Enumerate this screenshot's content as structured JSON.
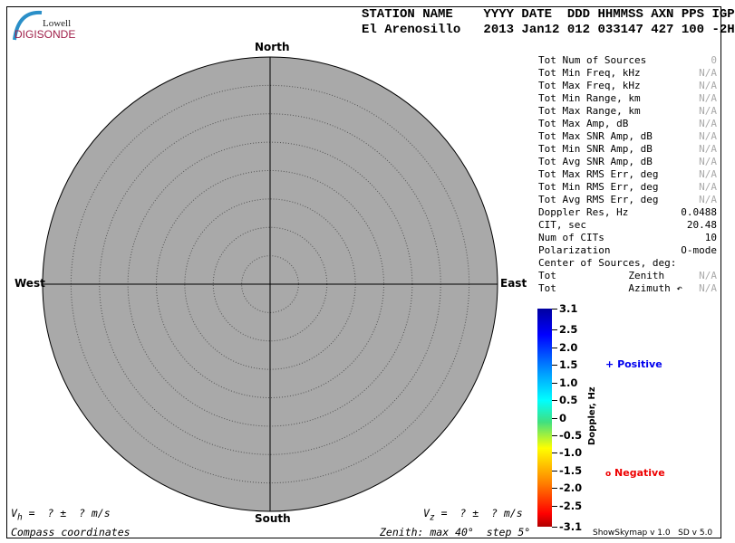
{
  "logo": {
    "line1": "Lowell",
    "line2": "DIGISONDE"
  },
  "header": {
    "labels": "STATION NAME    YYYY DATE  DDD HHMMSS AXN PPS IGP",
    "values": "El Arenosillo   2013 Jan12 012 033147 427 100 -2H"
  },
  "compass": {
    "north": "North",
    "south": "South",
    "east": "East",
    "west": "West",
    "max_zenith_deg": 40,
    "step_deg": 5
  },
  "stats": [
    {
      "label": "Tot Num of Sources",
      "value": "0",
      "muted": true
    },
    {
      "label": "Tot Min Freq, kHz",
      "value": "N/A",
      "muted": true
    },
    {
      "label": "Tot Max Freq, kHz",
      "value": "N/A",
      "muted": true
    },
    {
      "label": "Tot Min Range, km",
      "value": "N/A",
      "muted": true
    },
    {
      "label": "Tot Max Range, km",
      "value": "N/A",
      "muted": true
    },
    {
      "label": "Tot Max Amp, dB",
      "value": "N/A",
      "muted": true
    },
    {
      "label": "Tot Max SNR Amp, dB",
      "value": "N/A",
      "muted": true
    },
    {
      "label": "Tot Min SNR Amp, dB",
      "value": "N/A",
      "muted": true
    },
    {
      "label": "Tot Avg SNR Amp, dB",
      "value": "N/A",
      "muted": true
    },
    {
      "label": "Tot Max RMS Err, deg",
      "value": "N/A",
      "muted": true
    },
    {
      "label": "Tot Min RMS Err, deg",
      "value": "N/A",
      "muted": true
    },
    {
      "label": "Tot Avg RMS Err, deg",
      "value": "N/A",
      "muted": true
    },
    {
      "label": "Doppler Res, Hz",
      "value": "0.0488",
      "muted": false
    },
    {
      "label": "CIT, sec",
      "value": "20.48",
      "muted": false
    },
    {
      "label": "Num of CITs",
      "value": "10",
      "muted": false
    },
    {
      "label": "Polarization",
      "value": "O-mode",
      "muted": false
    },
    {
      "label": "Center of Sources, deg:",
      "value": "",
      "muted": false
    },
    {
      "label": "Tot            Zenith",
      "value": "N/A",
      "muted": true
    },
    {
      "label": "Tot            Azimuth ↶",
      "value": "N/A",
      "muted": true
    }
  ],
  "colorbar": {
    "title": "Doppler, Hz",
    "ticks": [
      "3.1",
      "2.5",
      "2.0",
      "1.5",
      "1.0",
      "0.5",
      "0",
      "-0.5",
      "-1.0",
      "-1.5",
      "-2.0",
      "-2.5",
      "-3.1"
    ],
    "range": [
      -3.1,
      3.1
    ]
  },
  "legend": {
    "positive": "Positive",
    "negative": "Negative",
    "positive_symbol": "+",
    "negative_symbol": "o",
    "positive_color": "#0000ee",
    "negative_color": "#ee0000"
  },
  "footer": {
    "vh": "V",
    "vh_sub": "h",
    "vh_rest": " =  ? ±  ? m/s",
    "vz": "V",
    "vz_sub": "z",
    "vz_rest": " =  ? ±  ? m/s",
    "coords": "Compass coordinates",
    "zenith": "Zenith: max 40°  step 5°",
    "version": "ShowSkymap v 1.0   SD v 5.0"
  }
}
